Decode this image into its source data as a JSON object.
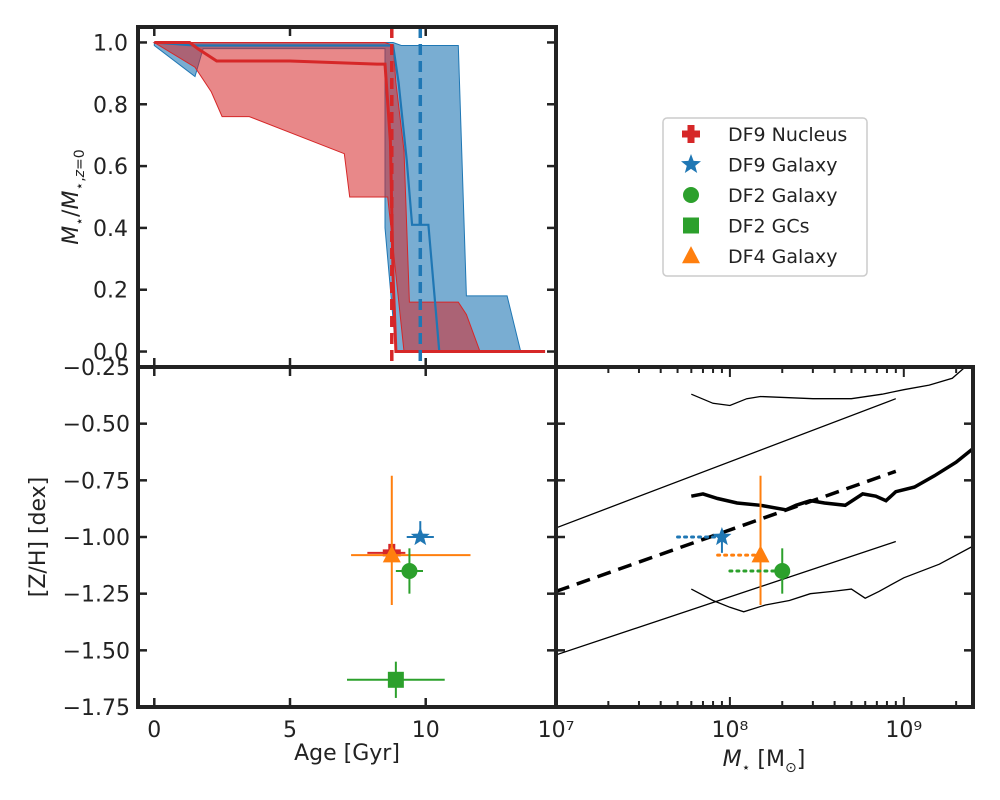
{
  "chart_data": [
    {
      "type": "area",
      "panel": "top",
      "xlabel": "",
      "ylabel": "M_⋆/M_⋆,z=0",
      "xlim": [
        -0.6,
        14.8
      ],
      "ylim": [
        -0.05,
        1.05
      ],
      "y_ticks": [
        0.0,
        0.2,
        0.4,
        0.6,
        0.8,
        1.0
      ],
      "y_tick_labels": [
        "0.0",
        "0.2",
        "0.4",
        "0.6",
        "0.8",
        "1.0"
      ],
      "vlines": [
        {
          "x": 8.75,
          "color": "#d62728",
          "style": "dashed"
        },
        {
          "x": 9.8,
          "color": "#1f77b4",
          "style": "dashed"
        }
      ],
      "series": [
        {
          "color": "#1f77b4",
          "median": [
            [
              0,
              1.0
            ],
            [
              1.5,
              0.99
            ],
            [
              5.0,
              0.99
            ],
            [
              8.5,
              0.99
            ],
            [
              8.8,
              0.99
            ],
            [
              9.0,
              0.87
            ],
            [
              9.3,
              0.62
            ],
            [
              9.5,
              0.41
            ],
            [
              9.9,
              0.41
            ],
            [
              10.1,
              0.41
            ],
            [
              10.5,
              0.0
            ],
            [
              11.0,
              0.0
            ]
          ],
          "band_upper": [
            [
              0,
              1.0
            ],
            [
              8.5,
              1.0
            ],
            [
              8.8,
              1.0
            ],
            [
              9.1,
              0.99
            ],
            [
              9.6,
              0.99
            ],
            [
              11.0,
              0.99
            ],
            [
              11.2,
              0.99
            ],
            [
              11.5,
              0.18
            ],
            [
              12.0,
              0.18
            ],
            [
              13.0,
              0.18
            ],
            [
              13.5,
              0.0
            ]
          ],
          "band_lower": [
            [
              13.5,
              0.0
            ],
            [
              9.5,
              0.0
            ],
            [
              8.9,
              0.0
            ],
            [
              8.5,
              0.4
            ],
            [
              8.5,
              0.98
            ],
            [
              1.8,
              0.98
            ],
            [
              1.5,
              0.89
            ],
            [
              0,
              0.99
            ]
          ]
        },
        {
          "color": "#d62728",
          "median": [
            [
              0,
              1.0
            ],
            [
              1.3,
              1.0
            ],
            [
              1.6,
              0.98
            ],
            [
              2.3,
              0.94
            ],
            [
              5.0,
              0.94
            ],
            [
              8.2,
              0.93
            ],
            [
              8.5,
              0.93
            ],
            [
              8.7,
              0.68
            ],
            [
              8.8,
              0.24
            ],
            [
              8.9,
              0.0
            ],
            [
              14.4,
              0.0
            ]
          ],
          "band_upper": [
            [
              0,
              1.0
            ],
            [
              8.5,
              1.0
            ],
            [
              8.8,
              0.99
            ],
            [
              8.9,
              0.87
            ],
            [
              9.2,
              0.65
            ],
            [
              9.4,
              0.16
            ],
            [
              11.2,
              0.16
            ],
            [
              11.5,
              0.12
            ],
            [
              12.0,
              0.0
            ],
            [
              12.5,
              0.0
            ]
          ],
          "band_lower": [
            [
              12.5,
              0.0
            ],
            [
              9.5,
              0.0
            ],
            [
              9.3,
              0.0
            ],
            [
              9.2,
              0.0
            ],
            [
              8.6,
              0.5
            ],
            [
              7.2,
              0.5
            ],
            [
              7.0,
              0.64
            ],
            [
              3.5,
              0.76
            ],
            [
              2.5,
              0.76
            ],
            [
              2.1,
              0.84
            ],
            [
              1.5,
              0.92
            ],
            [
              0,
              1.0
            ]
          ]
        }
      ]
    },
    {
      "type": "scatter",
      "panel": "bottom-left",
      "xlabel": "Age [Gyr]",
      "ylabel": "[Z/H] [dex]",
      "xlim": [
        -0.6,
        14.8
      ],
      "ylim": [
        -1.75,
        -0.25
      ],
      "x_ticks": [
        0,
        5,
        10
      ],
      "x_tick_labels": [
        "0",
        "5",
        "10"
      ],
      "y_ticks": [
        -1.75,
        -1.5,
        -1.25,
        -1.0,
        -0.75,
        -0.5,
        -0.25
      ],
      "y_tick_labels": [
        "−1.75",
        "−1.50",
        "−1.25",
        "−1.00",
        "−0.75",
        "−0.50",
        "−0.25"
      ],
      "points": [
        {
          "name": "DF9 Nucleus",
          "x": 8.75,
          "y": -1.07,
          "xerr": [
            0.9,
            0.5
          ],
          "yerr": [
            0.0,
            0.0
          ],
          "color": "#d62728",
          "marker": "plus"
        },
        {
          "name": "DF4 Galaxy",
          "x": 8.75,
          "y": -1.08,
          "xerr": [
            1.5,
            2.9
          ],
          "yerr": [
            0.22,
            0.35
          ],
          "color": "#ff7f0e",
          "marker": "triangle"
        },
        {
          "name": "DF9 Galaxy",
          "x": 9.8,
          "y": -1.0,
          "xerr": [
            0.5,
            0.5
          ],
          "yerr": [
            0.0,
            0.07
          ],
          "color": "#1f77b4",
          "marker": "star"
        },
        {
          "name": "DF2 Galaxy",
          "x": 9.4,
          "y": -1.15,
          "xerr": [
            0.5,
            0.5
          ],
          "yerr": [
            0.1,
            0.1
          ],
          "color": "#2ca02c",
          "marker": "circle"
        },
        {
          "name": "DF2 GCs",
          "x": 8.9,
          "y": -1.63,
          "xerr": [
            1.8,
            1.8
          ],
          "yerr": [
            0.08,
            0.08
          ],
          "color": "#2ca02c",
          "marker": "square"
        }
      ]
    },
    {
      "type": "scatter",
      "panel": "bottom-right",
      "xlabel": "M_⋆ [M_⊙]",
      "ylabel": "",
      "xscale": "log",
      "xlim": [
        10000000.0,
        2500000000.0
      ],
      "ylim": [
        -1.75,
        -0.25
      ],
      "x_tick_labels": [
        "10⁷",
        "10⁸",
        "10⁹"
      ],
      "dashed_line": [
        [
          10000000.0,
          -1.24
        ],
        [
          900000000.0,
          -0.71
        ]
      ],
      "thin_lines": [
        [
          [
            10000000.0,
            -0.96
          ],
          [
            900000000.0,
            -0.39
          ]
        ],
        [
          [
            10000000.0,
            -1.52
          ],
          [
            900000000.0,
            -1.02
          ]
        ]
      ],
      "thick_line": [
        [
          60000000.0,
          -0.82
        ],
        [
          70000000.0,
          -0.81
        ],
        [
          85000000.0,
          -0.83
        ],
        [
          110000000.0,
          -0.85
        ],
        [
          150000000.0,
          -0.86
        ],
        [
          210000000.0,
          -0.88
        ],
        [
          240000000.0,
          -0.86
        ],
        [
          290000000.0,
          -0.84
        ],
        [
          350000000.0,
          -0.85
        ],
        [
          460000000.0,
          -0.86
        ],
        [
          580000000.0,
          -0.81
        ],
        [
          690000000.0,
          -0.82
        ],
        [
          790000000.0,
          -0.84
        ],
        [
          900000000.0,
          -0.8
        ],
        [
          1150000000.0,
          -0.78
        ],
        [
          1500000000.0,
          -0.73
        ],
        [
          2000000000.0,
          -0.67
        ],
        [
          2500000000.0,
          -0.61
        ]
      ],
      "upper_envelope": [
        [
          60000000.0,
          -0.37
        ],
        [
          80000000.0,
          -0.41
        ],
        [
          100000000.0,
          -0.42
        ],
        [
          125000000.0,
          -0.39
        ],
        [
          150000000.0,
          -0.38
        ],
        [
          300000000.0,
          -0.39
        ],
        [
          500000000.0,
          -0.39
        ],
        [
          750000000.0,
          -0.37
        ],
        [
          1000000000.0,
          -0.35
        ],
        [
          1400000000.0,
          -0.33
        ],
        [
          1900000000.0,
          -0.3
        ],
        [
          2500000000.0,
          -0.22
        ]
      ],
      "lower_envelope": [
        [
          60000000.0,
          -1.23
        ],
        [
          80000000.0,
          -1.28
        ],
        [
          100000000.0,
          -1.31
        ],
        [
          120000000.0,
          -1.33
        ],
        [
          160000000.0,
          -1.3
        ],
        [
          220000000.0,
          -1.28
        ],
        [
          290000000.0,
          -1.25
        ],
        [
          390000000.0,
          -1.24
        ],
        [
          500000000.0,
          -1.23
        ],
        [
          600000000.0,
          -1.27
        ],
        [
          720000000.0,
          -1.24
        ],
        [
          1000000000.0,
          -1.18
        ],
        [
          1600000000.0,
          -1.12
        ],
        [
          2500000000.0,
          -1.04
        ]
      ],
      "points": [
        {
          "name": "DF9 Galaxy",
          "x": 90000000.0,
          "y": -1.0,
          "xerr_low": 40000000.0,
          "yerr": [
            0.07,
            0.0
          ],
          "color": "#1f77b4",
          "marker": "star"
        },
        {
          "name": "DF4 Galaxy",
          "x": 150000000.0,
          "y": -1.08,
          "xerr_low": 65000000.0,
          "yerr": [
            0.22,
            0.35
          ],
          "color": "#ff7f0e",
          "marker": "triangle"
        },
        {
          "name": "DF2 Galaxy",
          "x": 200000000.0,
          "y": -1.15,
          "xerr_low": 100000000.0,
          "yerr": [
            0.1,
            0.1
          ],
          "color": "#2ca02c",
          "marker": "circle"
        }
      ]
    }
  ],
  "legend": {
    "placement": "right of top panel",
    "entries": [
      {
        "label": "DF9 Nucleus",
        "color": "#d62728",
        "marker": "plus"
      },
      {
        "label": "DF9 Galaxy",
        "color": "#1f77b4",
        "marker": "star"
      },
      {
        "label": "DF2 Galaxy",
        "color": "#2ca02c",
        "marker": "circle"
      },
      {
        "label": "DF2 GCs",
        "color": "#2ca02c",
        "marker": "square"
      },
      {
        "label": "DF4 Galaxy",
        "color": "#ff7f0e",
        "marker": "triangle"
      }
    ]
  },
  "colors": {
    "blue": "#1f77b4",
    "red": "#d62728",
    "green": "#2ca02c",
    "orange": "#ff7f0e",
    "axis": "#222222"
  }
}
